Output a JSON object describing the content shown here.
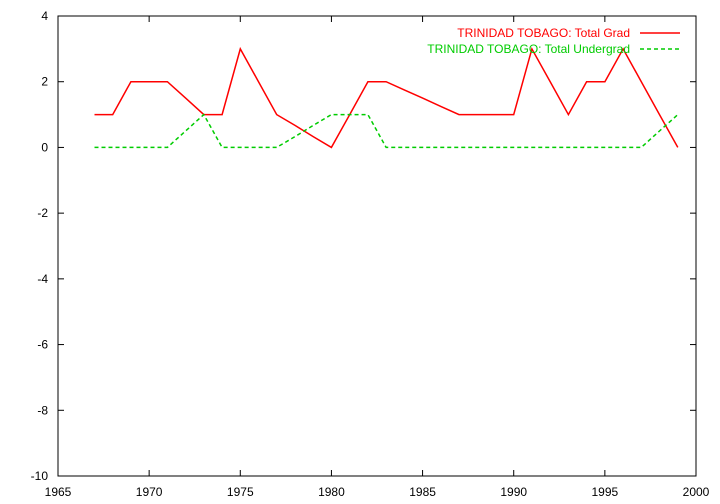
{
  "chart_data": {
    "type": "line",
    "title": "",
    "xlabel": "",
    "ylabel": "",
    "xlim": [
      1965,
      2000
    ],
    "ylim": [
      -10,
      4
    ],
    "xticks": [
      1965,
      1970,
      1975,
      1980,
      1985,
      1990,
      1995,
      2000
    ],
    "yticks": [
      -10,
      -8,
      -6,
      -4,
      -2,
      0,
      2,
      4
    ],
    "grid": false,
    "legend_position": "top-right",
    "series": [
      {
        "name": "TRINIDAD  TOBAGO: Total Grad",
        "color": "#ff0000",
        "dash": "solid",
        "x": [
          1967,
          1968,
          1969,
          1970,
          1971,
          1972,
          1973,
          1974,
          1975,
          1976,
          1977,
          1978,
          1979,
          1980,
          1981,
          1982,
          1983,
          1984,
          1985,
          1986,
          1987,
          1988,
          1989,
          1990,
          1991,
          1992,
          1993,
          1994,
          1995,
          1996,
          1997,
          1998,
          1999
        ],
        "y": [
          1,
          1,
          2,
          2,
          2,
          1.5,
          1,
          1,
          3,
          2,
          1,
          0.67,
          0.33,
          0,
          1,
          2,
          2,
          1.75,
          1.5,
          1.25,
          1,
          1,
          1,
          1,
          3,
          2,
          1,
          2,
          2,
          3,
          2,
          1,
          0
        ]
      },
      {
        "name": "TRINIDAD  TOBAGO: Total Undergrad",
        "color": "#00cc00",
        "dash": "dashed",
        "x": [
          1967,
          1968,
          1969,
          1970,
          1971,
          1972,
          1973,
          1974,
          1975,
          1976,
          1977,
          1978,
          1979,
          1980,
          1981,
          1982,
          1983,
          1984,
          1985,
          1986,
          1987,
          1988,
          1989,
          1990,
          1991,
          1992,
          1993,
          1994,
          1995,
          1996,
          1997,
          1998,
          1999
        ],
        "y": [
          0,
          0,
          0,
          0,
          0,
          0.5,
          1,
          0,
          0,
          0,
          0,
          0.33,
          0.67,
          1,
          1,
          1,
          0,
          0,
          0,
          0,
          0,
          0,
          0,
          0,
          0,
          0,
          0,
          0,
          0,
          0,
          0,
          0.5,
          1
        ]
      }
    ]
  }
}
